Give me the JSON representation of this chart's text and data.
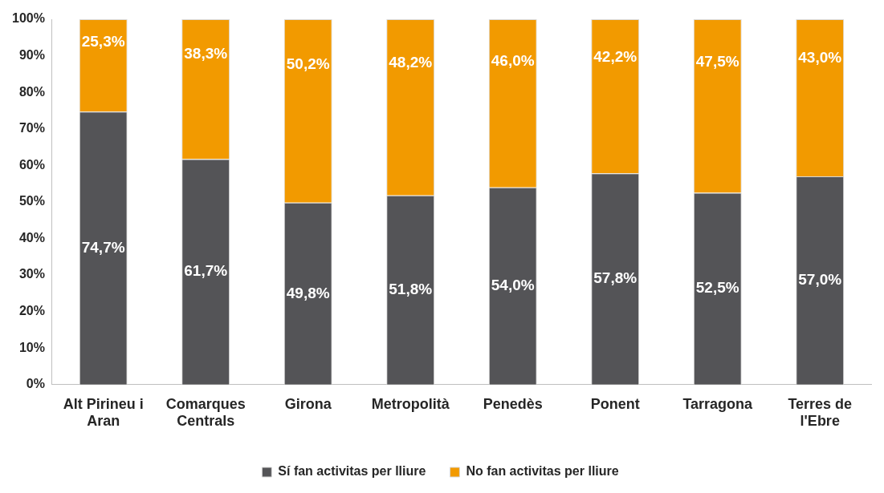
{
  "chart_data": {
    "type": "bar",
    "stacked": true,
    "categories": [
      "Alt Pirineu i Aran",
      "Comarques Centrals",
      "Girona",
      "Metropolità",
      "Penedès",
      "Ponent",
      "Tarragona",
      "Terres de l'Ebre"
    ],
    "series": [
      {
        "name": "Sí fan activitas per lliure",
        "color": "#545457",
        "values": [
          74.7,
          61.7,
          49.8,
          51.8,
          54.0,
          57.8,
          52.5,
          57.0
        ],
        "value_labels": [
          "74,7%",
          "61,7%",
          "49,8%",
          "51,8%",
          "54,0%",
          "57,8%",
          "52,5%",
          "57,0%"
        ]
      },
      {
        "name": "No fan activitas per lliure",
        "color": "#f29a00",
        "values": [
          25.3,
          38.3,
          50.2,
          48.2,
          46.0,
          42.2,
          47.5,
          43.0
        ],
        "value_labels": [
          "25,3%",
          "38,3%",
          "50,2%",
          "48,2%",
          "46,0%",
          "42,2%",
          "47,5%",
          "43,0%"
        ]
      }
    ],
    "ylim": [
      0,
      100
    ],
    "yticks": [
      {
        "value": 0,
        "label": "0%"
      },
      {
        "value": 10,
        "label": "10%"
      },
      {
        "value": 20,
        "label": "20%"
      },
      {
        "value": 30,
        "label": "30%"
      },
      {
        "value": 40,
        "label": "40%"
      },
      {
        "value": 50,
        "label": "50%"
      },
      {
        "value": 60,
        "label": "60%"
      },
      {
        "value": 70,
        "label": "70%"
      },
      {
        "value": 80,
        "label": "80%"
      },
      {
        "value": 90,
        "label": "90%"
      },
      {
        "value": 100,
        "label": "100%"
      }
    ],
    "grid": false,
    "legend": "bottom"
  }
}
